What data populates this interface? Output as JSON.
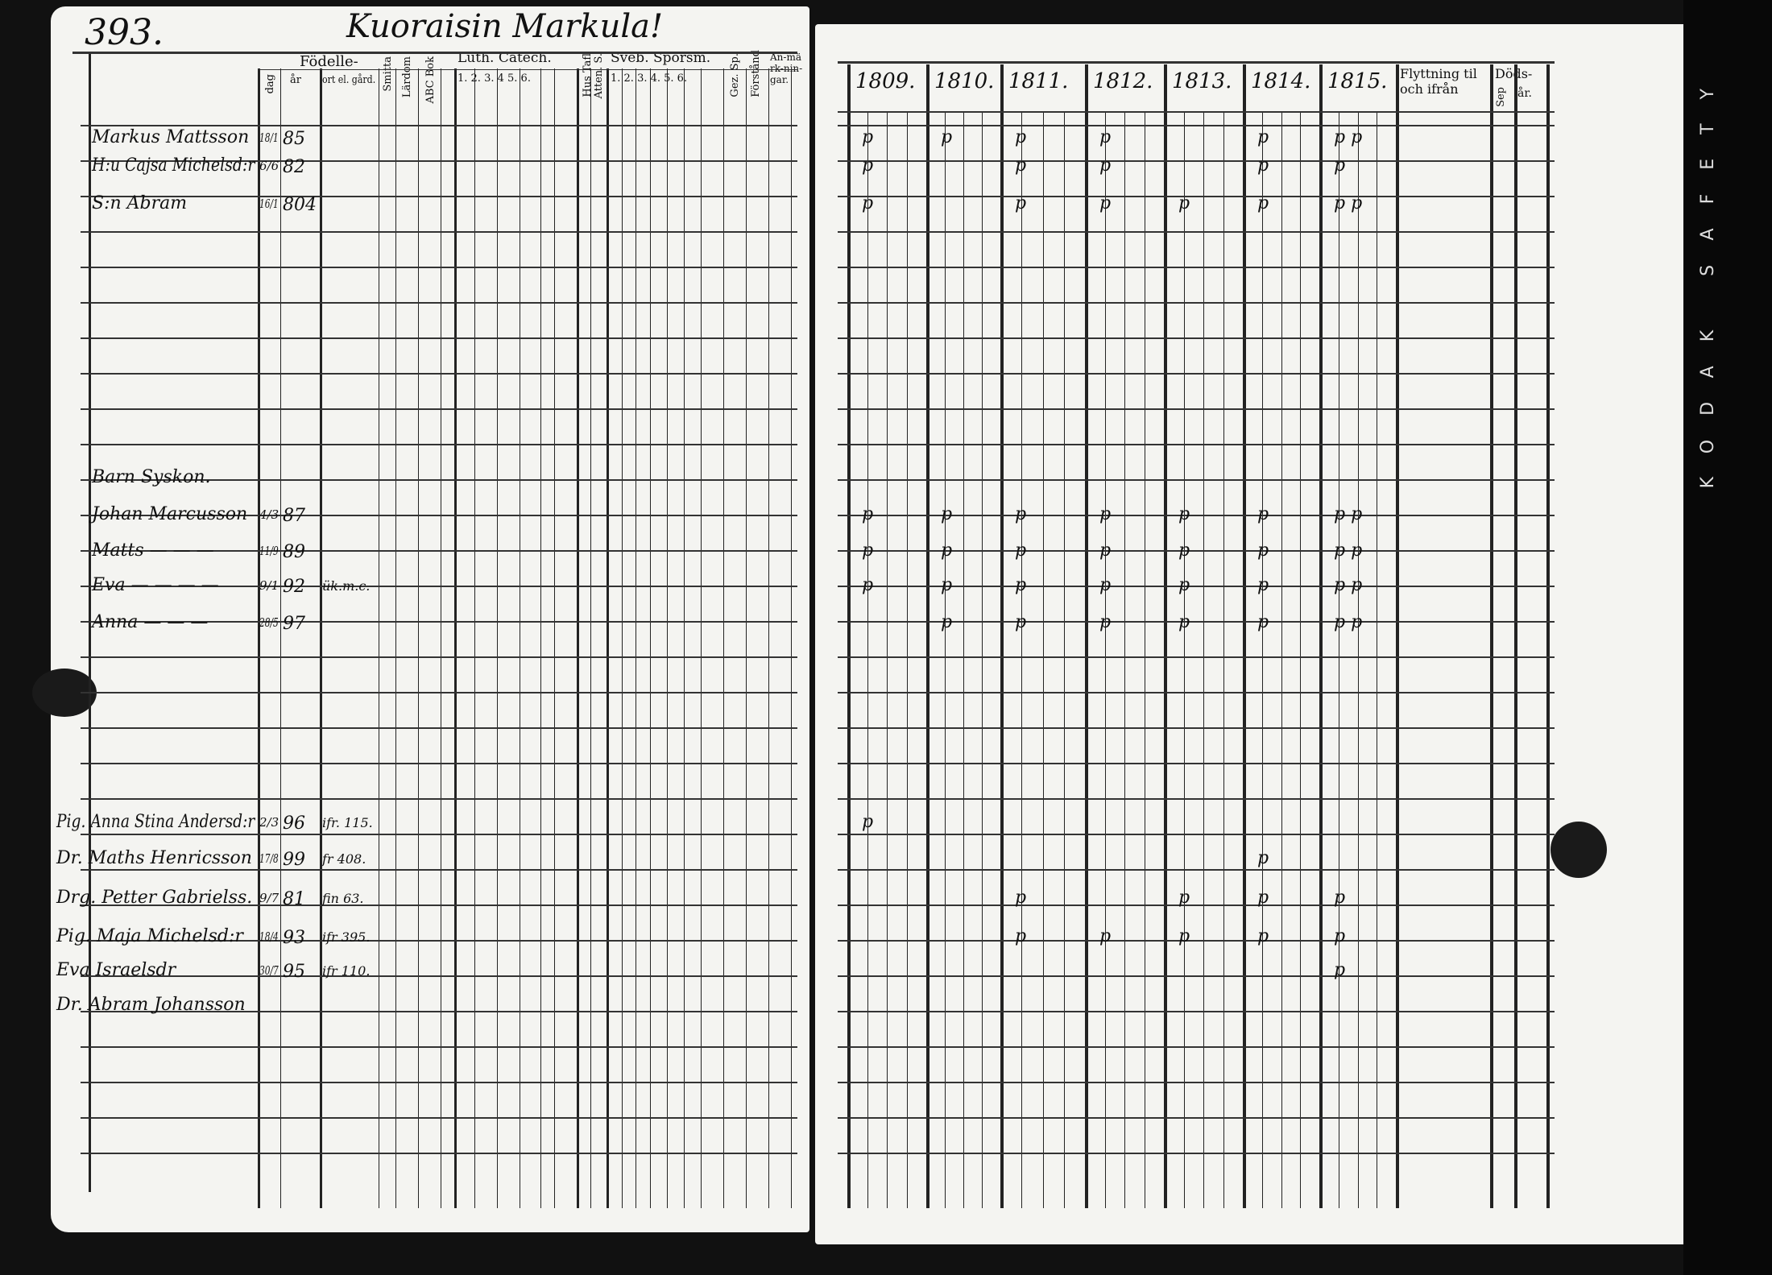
{
  "left_page": {
    "page_number": "393.",
    "heading": "Kuoraisin Markula!",
    "columns": {
      "birth_group": "Födelle-",
      "day": "dag",
      "year": "år",
      "place": "ort el. gård.",
      "c1": "Smitta",
      "c2": "Lärdom",
      "c3": "ABC Bok",
      "luth_group": "Luth. Catech.",
      "luth_nums": "1. 2. 3. 4  5. 6.",
      "hus": "Hus Tafl",
      "atten": "Atten. S.",
      "sveb_group": "Sveb. Spörsm.",
      "sveb_nums": "1. 2. 3. 4. 5. 6.",
      "gez": "Gez. Sp.",
      "forstand": "Förstånd",
      "anm": "An-märk-nin-gar."
    },
    "rows": [
      {
        "name": "Markus Mattsson",
        "date": "18/1",
        "year": "85",
        "place": ""
      },
      {
        "name": "H:u Cajsa Michelsd:r",
        "date": "6/6",
        "year": "82",
        "place": ""
      },
      {
        "name": "S:n Abram",
        "date": "16/1",
        "year": "804",
        "place": ""
      },
      {
        "name": "Barn Syskon.",
        "date": "",
        "year": "",
        "place": ""
      },
      {
        "name": "Johan Marcusson",
        "date": "4/3",
        "year": "87",
        "place": ""
      },
      {
        "name": "Matts — — —",
        "date": "11/9",
        "year": "89",
        "place": ""
      },
      {
        "name": "Eva — — — —",
        "date": "9/1",
        "year": "92",
        "place": "ük.m.c."
      },
      {
        "name": "Anna — — —",
        "date": "28/5",
        "year": "97",
        "place": ""
      },
      {
        "name": "Pig. Anna Stina Andersd:r",
        "date": "2/3",
        "year": "96",
        "place": "ifr. 115."
      },
      {
        "name": "Dr. Maths Henricsson",
        "date": "17/8",
        "year": "99",
        "place": "fr 408."
      },
      {
        "name": "Drg. Petter Gabrielss.",
        "date": "9/7",
        "year": "81",
        "place": "fin 63."
      },
      {
        "name": "Pig. Maja Michelsd:r",
        "date": "18/4",
        "year": "93",
        "place": "ifr 395."
      },
      {
        "name": "Eva Israelsdr",
        "date": "30/7",
        "year": "95",
        "place": "ifr 110."
      },
      {
        "name": "Dr. Abram Johansson",
        "date": "",
        "year": "",
        "place": ""
      }
    ]
  },
  "right_page": {
    "years": [
      "1809.",
      "1810.",
      "1811.",
      "1812.",
      "1813.",
      "1814.",
      "1815."
    ],
    "moving_header": "Flyttning til och ifrån",
    "death_header": "Döds-",
    "death_sub_a": "Sep",
    "death_sub_b": "år.",
    "marks": [
      [
        "p",
        "p",
        "p",
        "p",
        "",
        "p",
        "p p"
      ],
      [
        "p",
        "",
        "p",
        "p",
        "",
        "p",
        "p"
      ],
      [
        "p",
        "",
        "p",
        "p",
        "p",
        "p",
        "p p"
      ],
      [
        "",
        "",
        "",
        "",
        "",
        "",
        ""
      ],
      [
        "p",
        "p",
        "p",
        "p",
        "p",
        "p",
        "p p"
      ],
      [
        "p",
        "p",
        "p",
        "p",
        "p",
        "p",
        "p p"
      ],
      [
        "p",
        "p",
        "p",
        "p",
        "p",
        "p",
        "p p"
      ],
      [
        "",
        "p",
        "p",
        "p",
        "p",
        "p",
        "p p"
      ],
      [
        "p",
        "",
        "",
        "",
        "",
        "",
        ""
      ],
      [
        "",
        "",
        "",
        "",
        "",
        "p",
        ""
      ],
      [
        "",
        "",
        "p",
        "",
        "p",
        "p",
        "p"
      ],
      [
        "",
        "",
        "p",
        "p",
        "p",
        "p",
        "p"
      ],
      [
        "",
        "",
        "",
        "",
        "",
        "",
        "p"
      ],
      [
        "",
        "",
        "",
        "",
        "",
        "",
        ""
      ]
    ]
  },
  "film_edge": "KODAK SAFETY",
  "colors": {
    "paper": "#f4f4f1",
    "ink": "#111111",
    "background": "#111111"
  }
}
